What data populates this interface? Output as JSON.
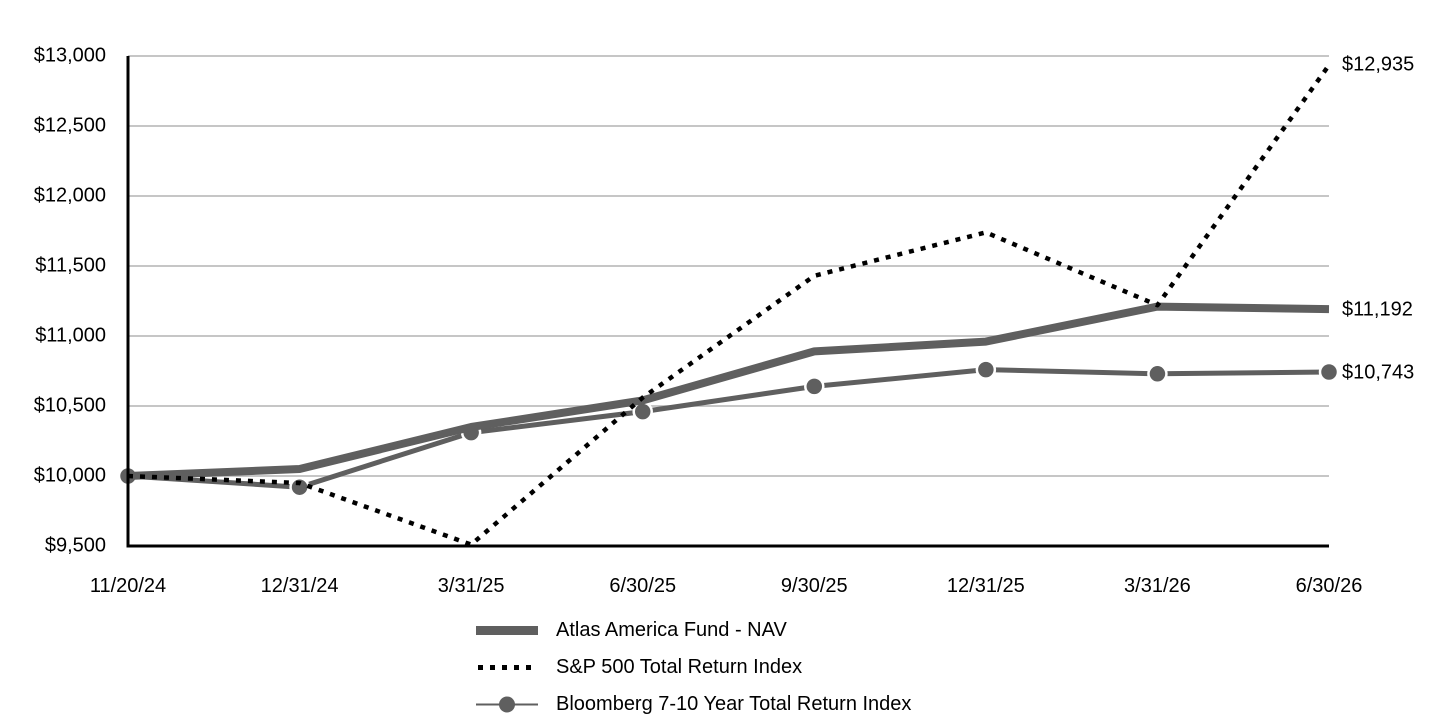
{
  "chart_data": {
    "type": "line",
    "title": "",
    "xlabel": "",
    "ylabel": "",
    "x": [
      "11/20/24",
      "12/31/24",
      "3/31/25",
      "6/30/25",
      "9/30/25",
      "12/31/25",
      "3/31/26",
      "6/30/26"
    ],
    "y_ticks": [
      "$9,500",
      "$10,000",
      "$10,500",
      "$11,000",
      "$11,500",
      "$12,000",
      "$12,500",
      "$13,000"
    ],
    "ylim": [
      9500,
      13000
    ],
    "grid": true,
    "legend_position": "bottom",
    "series": [
      {
        "name": "Atlas America Fund - NAV",
        "style": "thick-solid",
        "color": "#5f5f5f",
        "values": [
          10000,
          10050,
          10350,
          10540,
          10890,
          10960,
          11210,
          11192
        ],
        "end_label": "$11,192"
      },
      {
        "name": "S&P 500 Total Return Index",
        "style": "dotted",
        "color": "#000000",
        "values": [
          10000,
          9950,
          9510,
          10560,
          11430,
          11740,
          11220,
          12935
        ],
        "end_label": "$12,935"
      },
      {
        "name": "Bloomberg 7-10 Year Total Return Index",
        "style": "line-with-markers",
        "color": "#5f5f5f",
        "values": [
          10000,
          9920,
          10310,
          10460,
          10640,
          10760,
          10730,
          10743
        ],
        "end_label": "$10,743"
      }
    ]
  }
}
